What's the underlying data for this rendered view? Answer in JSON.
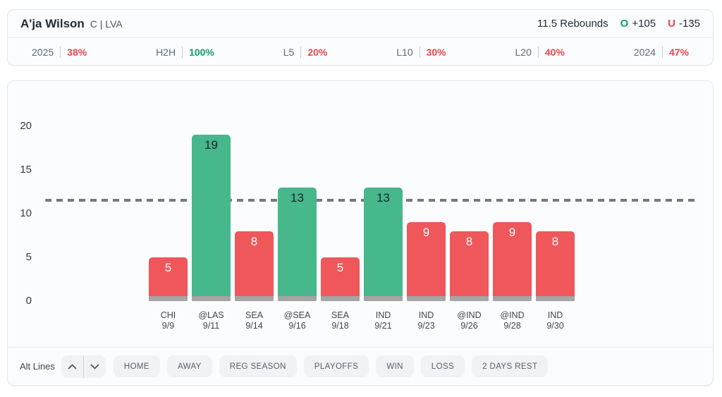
{
  "header": {
    "player_name": "A'ja Wilson",
    "position_team": "C | LVA",
    "line_label": "11.5 Rebounds",
    "over_symbol": "O",
    "over_odds": "+105",
    "under_symbol": "U",
    "under_odds": "-135"
  },
  "stats": [
    {
      "label": "2025",
      "value": "38%",
      "trend": "red"
    },
    {
      "label": "H2H",
      "value": "100%",
      "trend": "green"
    },
    {
      "label": "L5",
      "value": "20%",
      "trend": "red"
    },
    {
      "label": "L10",
      "value": "30%",
      "trend": "red"
    },
    {
      "label": "L20",
      "value": "40%",
      "trend": "red"
    },
    {
      "label": "2024",
      "value": "47%",
      "trend": "red"
    }
  ],
  "chart_data": {
    "type": "bar",
    "title": "",
    "xlabel": "",
    "ylabel": "",
    "ylim": [
      0,
      22
    ],
    "yticks": [
      0,
      5,
      10,
      15,
      20
    ],
    "grid": false,
    "line_value": 11.5,
    "games": [
      {
        "opponent": "CHI",
        "date": "9/9",
        "value": 5,
        "result": "under"
      },
      {
        "opponent": "@LAS",
        "date": "9/11",
        "value": 19,
        "result": "over"
      },
      {
        "opponent": "SEA",
        "date": "9/14",
        "value": 8,
        "result": "under"
      },
      {
        "opponent": "@SEA",
        "date": "9/16",
        "value": 13,
        "result": "over"
      },
      {
        "opponent": "SEA",
        "date": "9/18",
        "value": 5,
        "result": "under"
      },
      {
        "opponent": "IND",
        "date": "9/21",
        "value": 13,
        "result": "over"
      },
      {
        "opponent": "IND",
        "date": "9/23",
        "value": 9,
        "result": "under"
      },
      {
        "opponent": "@IND",
        "date": "9/26",
        "value": 8,
        "result": "under"
      },
      {
        "opponent": "@IND",
        "date": "9/28",
        "value": 9,
        "result": "under"
      },
      {
        "opponent": "IND",
        "date": "9/30",
        "value": 8,
        "result": "under"
      }
    ]
  },
  "toolbar": {
    "alt_lines_label": "Alt Lines",
    "filters": [
      "HOME",
      "AWAY",
      "REG SEASON",
      "PLAYOFFS",
      "WIN",
      "LOSS",
      "2 DAYS REST"
    ]
  },
  "colors": {
    "over_green_text": "#0e9f6e",
    "under_red_text": "#e8474b",
    "bar_green": "#47b78c",
    "bar_red": "#ef575b",
    "bar_base_gray": "#a5a5a5",
    "dashed_line_gray": "#75797f"
  }
}
